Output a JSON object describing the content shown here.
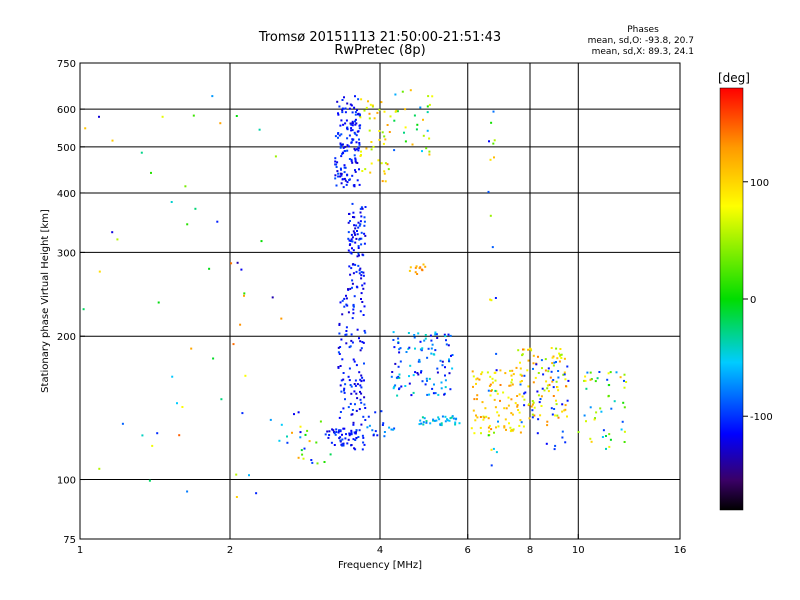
{
  "chart_data": {
    "type": "scatter",
    "title": "Tromsø 20151113 21:50:00-21:51:43",
    "subtitle": "RwPretec (8p)",
    "stats": {
      "heading": "Phases",
      "line1": "mean, sd,O: -93.8, 20.7",
      "line2": "mean, sd,X:  89.3, 24.1"
    },
    "xlabel": "Frequency [MHz]",
    "ylabel": "Stationary phase Virtual Height [km]",
    "x_scale": "log",
    "y_scale": "log",
    "xlim": [
      1,
      16
    ],
    "ylim": [
      75,
      750
    ],
    "x_ticks": [
      1,
      2,
      4,
      6,
      8,
      10,
      16
    ],
    "y_ticks": [
      75,
      100,
      200,
      300,
      400,
      500,
      600,
      750
    ],
    "x_gridlines": [
      2,
      4,
      6,
      8,
      10
    ],
    "y_gridlines": [
      100,
      200,
      300,
      400,
      500,
      600
    ],
    "grid": true,
    "colorbar": {
      "label": "[deg]",
      "min": -180,
      "max": 180,
      "ticks": [
        -100,
        0,
        100
      ]
    },
    "color_encoding": "phase (deg)",
    "clusters": [
      {
        "x": [
          3.25,
          3.65
        ],
        "y": [
          410,
          640
        ],
        "phase": [
          -130,
          -90
        ],
        "count": 150
      },
      {
        "x": [
          3.65,
          4.2
        ],
        "y": [
          420,
          640
        ],
        "phase": [
          40,
          140
        ],
        "count": 45
      },
      {
        "x": [
          4.2,
          5.1
        ],
        "y": [
          480,
          660
        ],
        "phase": [
          -120,
          120
        ],
        "count": 30
      },
      {
        "x": [
          3.45,
          3.75
        ],
        "y": [
          250,
          380
        ],
        "phase": [
          -130,
          -90
        ],
        "count": 90
      },
      {
        "x": [
          3.3,
          3.75
        ],
        "y": [
          115,
          250
        ],
        "phase": [
          -130,
          -90
        ],
        "count": 130
      },
      {
        "x": [
          3.1,
          3.7
        ],
        "y": [
          118,
          128
        ],
        "phase": [
          -130,
          -90
        ],
        "count": 45
      },
      {
        "x": [
          3.7,
          4.3
        ],
        "y": [
          122,
          140
        ],
        "phase": [
          -120,
          -60
        ],
        "count": 20
      },
      {
        "x": [
          4.2,
          5.6
        ],
        "y": [
          150,
          205
        ],
        "phase": [
          -130,
          -30
        ],
        "count": 110
      },
      {
        "x": [
          4.8,
          5.8
        ],
        "y": [
          130,
          136
        ],
        "phase": [
          -80,
          -30
        ],
        "count": 35
      },
      {
        "x": [
          4.4,
          5.0
        ],
        "y": [
          270,
          285
        ],
        "phase": [
          100,
          150
        ],
        "count": 12
      },
      {
        "x": [
          6.1,
          7.8
        ],
        "y": [
          125,
          170
        ],
        "phase": [
          60,
          140
        ],
        "count": 90
      },
      {
        "x": [
          7.5,
          9.5
        ],
        "y": [
          130,
          190
        ],
        "phase": [
          40,
          140
        ],
        "count": 90
      },
      {
        "x": [
          7.6,
          9.6
        ],
        "y": [
          115,
          180
        ],
        "phase": [
          -120,
          -80
        ],
        "count": 40
      },
      {
        "x": [
          10.0,
          12.5
        ],
        "y": [
          115,
          170
        ],
        "phase": [
          -100,
          120
        ],
        "count": 50
      },
      {
        "x": [
          2.5,
          3.2
        ],
        "y": [
          108,
          140
        ],
        "phase": [
          -120,
          130
        ],
        "count": 25
      },
      {
        "x": [
          1.0,
          2.6
        ],
        "y": [
          85,
          650
        ],
        "phase": [
          -140,
          150
        ],
        "count": 55
      },
      {
        "x": [
          6.6,
          6.9
        ],
        "y": [
          90,
          620
        ],
        "phase": [
          -130,
          120
        ],
        "count": 30
      }
    ]
  }
}
